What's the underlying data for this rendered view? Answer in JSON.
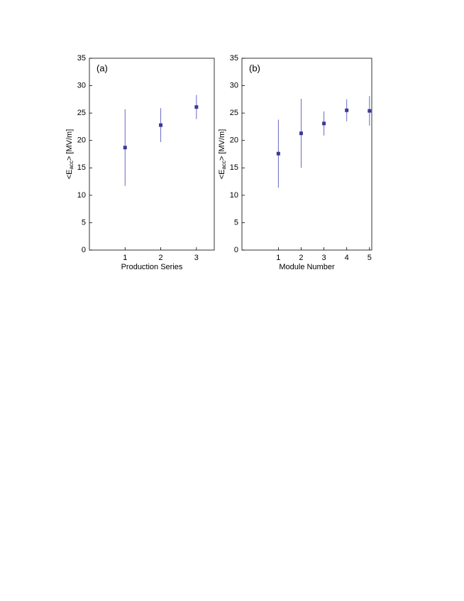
{
  "chart_data": [
    {
      "type": "scatter",
      "panel_label": "(a)",
      "xlabel": "Production Series",
      "ylabel": {
        "before": "<E",
        "sub": "acc",
        "after": "> [MV/m]"
      },
      "x": [
        1,
        2,
        3
      ],
      "values": [
        18.7,
        22.8,
        26.1
      ],
      "errors": [
        7.0,
        3.1,
        2.2
      ],
      "point_color": "#3b3b8f",
      "bar_color": "#6868c8",
      "xlim": [
        0,
        3.5
      ],
      "xticks": [
        1,
        2,
        3
      ],
      "ylim": [
        0,
        35
      ],
      "yticks": [
        0,
        5,
        10,
        15,
        20,
        25,
        30,
        35
      ]
    },
    {
      "type": "scatter",
      "panel_label": "(b)",
      "xlabel": "Module Number",
      "ylabel": {
        "before": "<E",
        "sub": "acc",
        "after": "> [MV/m]"
      },
      "x": [
        1,
        2,
        3,
        4,
        5
      ],
      "values": [
        17.6,
        21.3,
        23.1,
        25.5,
        25.4
      ],
      "errors": [
        6.2,
        6.3,
        2.2,
        2.0,
        2.7
      ],
      "point_color": "#3b3b8f",
      "bar_color": "#6868c8",
      "xlim": [
        -0.6,
        5.1
      ],
      "xticks": [
        1,
        2,
        3,
        4,
        5
      ],
      "ylim": [
        0,
        35
      ],
      "yticks": [
        0,
        5,
        10,
        15,
        20,
        25,
        30,
        35
      ]
    }
  ]
}
